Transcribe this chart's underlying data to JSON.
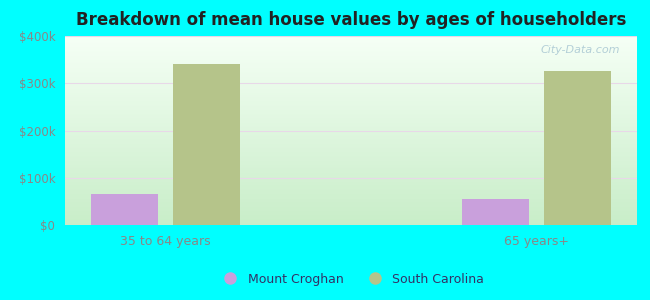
{
  "title": "Breakdown of mean house values by ages of householders",
  "categories": [
    "35 to 64 years",
    "65 years+"
  ],
  "mount_croghan_values": [
    65000,
    55000
  ],
  "south_carolina_values": [
    340000,
    325000
  ],
  "mount_croghan_color": "#c9a0dc",
  "south_carolina_color": "#b5c48a",
  "background_color": "#00ffff",
  "ylim": [
    0,
    400000
  ],
  "yticks": [
    0,
    100000,
    200000,
    300000,
    400000
  ],
  "ytick_labels": [
    "$0",
    "$100k",
    "$200k",
    "$300k",
    "$400k"
  ],
  "bar_width": 0.18,
  "legend_labels": [
    "Mount Croghan",
    "South Carolina"
  ],
  "watermark": "City-Data.com",
  "plot_bg_top": "#f5fff5",
  "plot_bg_bottom": "#c8edc8",
  "grid_color": "#ddeecc",
  "tick_color": "#888888",
  "title_color": "#222222"
}
